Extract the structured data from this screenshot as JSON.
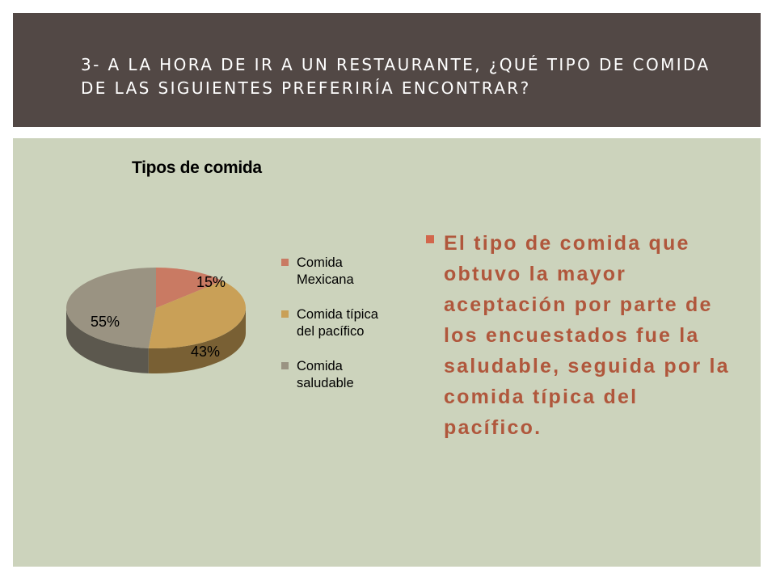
{
  "header": {
    "title": "3- A LA HORA DE IR A UN RESTAURANTE, ¿QUÉ TIPO DE COMIDA DE LAS SIGUIENTES PREFERIRÍA ENCONTRAR?"
  },
  "chart_data": {
    "type": "pie",
    "title": "Tipos de comida",
    "categories": [
      "Comida Mexicana",
      "Comida típica del pacífico",
      "Comida saludable"
    ],
    "values": [
      15,
      43,
      55
    ],
    "data_labels": [
      "15%",
      "43%",
      "55%"
    ],
    "colors": [
      "#c97a63",
      "#c9a057",
      "#9a9382"
    ],
    "legend_position": "right",
    "style": "3d"
  },
  "body": {
    "bullet_text": "El tipo de  comida que obtuvo la mayor aceptación por parte de los encuestados fue la saludable, seguida por la comida típica del pacífico."
  },
  "colors": {
    "header_bg": "#524845",
    "content_bg": "#ccd3bc",
    "accent": "#b0573c"
  }
}
